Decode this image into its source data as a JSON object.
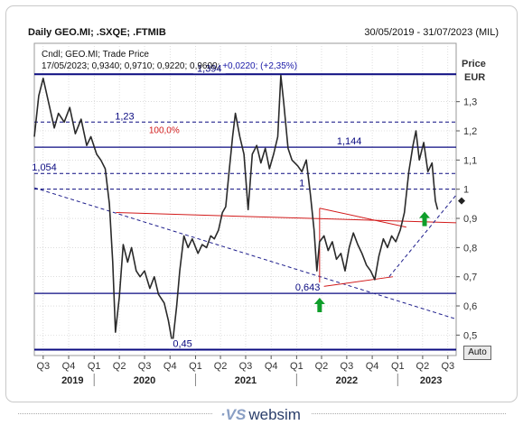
{
  "header": {
    "title": "Daily GEO.MI; .SXQE; .FTMIB",
    "date_range": "30/05/2019 - 31/07/2023 (MIL)"
  },
  "legend": {
    "line1": "Cndl; GEO.MI; Trade Price",
    "line2_values": "17/05/2023; 0,9340; 0,9710; 0,9220; 0,9600;",
    "line2_change": "+0,0220; (+2,35%)"
  },
  "axis": {
    "price_label": "Price",
    "currency_label": "EUR",
    "auto_button": "Auto"
  },
  "brand": {
    "logo_mark": "·VS",
    "logo_text": "websim"
  },
  "colors": {
    "price_line": "#2a2a2a",
    "level_line": "#0a0a80",
    "dashed_level": "#0a0a80",
    "trend_red": "#d21a1a",
    "trend_dashed": "#1e1e8c",
    "arrow_green": "#0f9e2a",
    "grid": "#c8c8c8"
  },
  "chart_data": {
    "type": "line",
    "title": "Daily GEO.MI; .SXQE; .FTMIB",
    "ylabel": "Price EUR",
    "ylim": [
      0.43,
      1.5
    ],
    "y_ticks": [
      0.5,
      0.6,
      0.7,
      0.8,
      0.9,
      1,
      1.1,
      1.2,
      1.3
    ],
    "y_tick_labels": [
      "0,5",
      "0,6",
      "0,7",
      "0,8",
      "0,9",
      "1",
      "1,1",
      "1,2",
      "1,3"
    ],
    "x_range": [
      "2019-05-30",
      "2023-07-31"
    ],
    "x_ticks": [
      {
        "date": "2019-07-01",
        "label": "Q3"
      },
      {
        "date": "2019-10-01",
        "label": "Q4"
      },
      {
        "date": "2020-01-01",
        "label": "Q1"
      },
      {
        "date": "2020-04-01",
        "label": "Q2"
      },
      {
        "date": "2020-07-01",
        "label": "Q3"
      },
      {
        "date": "2020-10-01",
        "label": "Q4"
      },
      {
        "date": "2021-01-01",
        "label": "Q1"
      },
      {
        "date": "2021-04-01",
        "label": "Q2"
      },
      {
        "date": "2021-07-01",
        "label": "Q3"
      },
      {
        "date": "2021-10-01",
        "label": "Q4"
      },
      {
        "date": "2022-01-01",
        "label": "Q1"
      },
      {
        "date": "2022-04-01",
        "label": "Q2"
      },
      {
        "date": "2022-07-01",
        "label": "Q3"
      },
      {
        "date": "2022-10-01",
        "label": "Q4"
      },
      {
        "date": "2023-01-01",
        "label": "Q1"
      },
      {
        "date": "2023-04-01",
        "label": "Q2"
      },
      {
        "date": "2023-07-01",
        "label": "Q3"
      }
    ],
    "year_labels": [
      {
        "date": "2019-10-15",
        "label": "2019"
      },
      {
        "date": "2020-07-01",
        "label": "2020"
      },
      {
        "date": "2021-07-01",
        "label": "2021"
      },
      {
        "date": "2022-07-01",
        "label": "2022"
      },
      {
        "date": "2023-05-01",
        "label": "2023"
      }
    ],
    "last_price": 0.96,
    "series": [
      {
        "name": "GEO.MI",
        "points": [
          [
            "2019-05-30",
            1.18
          ],
          [
            "2019-06-15",
            1.32
          ],
          [
            "2019-07-01",
            1.38
          ],
          [
            "2019-07-20",
            1.3
          ],
          [
            "2019-08-10",
            1.21
          ],
          [
            "2019-08-25",
            1.26
          ],
          [
            "2019-09-15",
            1.23
          ],
          [
            "2019-10-05",
            1.28
          ],
          [
            "2019-10-25",
            1.19
          ],
          [
            "2019-11-15",
            1.24
          ],
          [
            "2019-12-05",
            1.15
          ],
          [
            "2019-12-20",
            1.18
          ],
          [
            "2020-01-10",
            1.12
          ],
          [
            "2020-01-25",
            1.1
          ],
          [
            "2020-02-10",
            1.07
          ],
          [
            "2020-02-25",
            0.95
          ],
          [
            "2020-03-08",
            0.75
          ],
          [
            "2020-03-18",
            0.51
          ],
          [
            "2020-04-01",
            0.63
          ],
          [
            "2020-04-15",
            0.81
          ],
          [
            "2020-05-01",
            0.75
          ],
          [
            "2020-05-15",
            0.8
          ],
          [
            "2020-06-01",
            0.72
          ],
          [
            "2020-06-15",
            0.7
          ],
          [
            "2020-07-01",
            0.72
          ],
          [
            "2020-07-20",
            0.66
          ],
          [
            "2020-08-05",
            0.7
          ],
          [
            "2020-08-20",
            0.64
          ],
          [
            "2020-09-10",
            0.61
          ],
          [
            "2020-09-25",
            0.55
          ],
          [
            "2020-10-10",
            0.47
          ],
          [
            "2020-10-25",
            0.6
          ],
          [
            "2020-11-05",
            0.72
          ],
          [
            "2020-11-20",
            0.84
          ],
          [
            "2020-12-05",
            0.8
          ],
          [
            "2020-12-20",
            0.83
          ],
          [
            "2021-01-10",
            0.78
          ],
          [
            "2021-01-25",
            0.81
          ],
          [
            "2021-02-10",
            0.8
          ],
          [
            "2021-02-25",
            0.84
          ],
          [
            "2021-03-10",
            0.83
          ],
          [
            "2021-03-25",
            0.86
          ],
          [
            "2021-04-08",
            0.92
          ],
          [
            "2021-04-20",
            0.94
          ],
          [
            "2021-05-01",
            1.05
          ],
          [
            "2021-05-15",
            1.18
          ],
          [
            "2021-05-25",
            1.26
          ],
          [
            "2021-06-10",
            1.18
          ],
          [
            "2021-06-25",
            1.12
          ],
          [
            "2021-07-10",
            0.93
          ],
          [
            "2021-07-25",
            1.12
          ],
          [
            "2021-08-10",
            1.15
          ],
          [
            "2021-08-25",
            1.09
          ],
          [
            "2021-09-10",
            1.14
          ],
          [
            "2021-09-25",
            1.07
          ],
          [
            "2021-10-10",
            1.12
          ],
          [
            "2021-10-25",
            1.18
          ],
          [
            "2021-11-05",
            1.39
          ],
          [
            "2021-11-15",
            1.3
          ],
          [
            "2021-12-01",
            1.14
          ],
          [
            "2021-12-15",
            1.1
          ],
          [
            "2022-01-05",
            1.08
          ],
          [
            "2022-01-20",
            1.06
          ],
          [
            "2022-02-05",
            1.1
          ],
          [
            "2022-02-20",
            0.98
          ],
          [
            "2022-03-05",
            0.86
          ],
          [
            "2022-03-15",
            0.72
          ],
          [
            "2022-03-25",
            0.82
          ],
          [
            "2022-04-10",
            0.84
          ],
          [
            "2022-04-25",
            0.79
          ],
          [
            "2022-05-10",
            0.82
          ],
          [
            "2022-05-25",
            0.76
          ],
          [
            "2022-06-10",
            0.78
          ],
          [
            "2022-06-25",
            0.72
          ],
          [
            "2022-07-10",
            0.8
          ],
          [
            "2022-07-25",
            0.85
          ],
          [
            "2022-08-10",
            0.81
          ],
          [
            "2022-08-25",
            0.78
          ],
          [
            "2022-09-10",
            0.74
          ],
          [
            "2022-09-25",
            0.72
          ],
          [
            "2022-10-10",
            0.69
          ],
          [
            "2022-10-25",
            0.77
          ],
          [
            "2022-11-10",
            0.83
          ],
          [
            "2022-11-25",
            0.8
          ],
          [
            "2022-12-10",
            0.84
          ],
          [
            "2022-12-25",
            0.82
          ],
          [
            "2023-01-10",
            0.86
          ],
          [
            "2023-01-25",
            0.92
          ],
          [
            "2023-02-10",
            1.06
          ],
          [
            "2023-02-25",
            1.15
          ],
          [
            "2023-03-08",
            1.2
          ],
          [
            "2023-03-20",
            1.1
          ],
          [
            "2023-04-05",
            1.16
          ],
          [
            "2023-04-20",
            1.06
          ],
          [
            "2023-05-05",
            1.09
          ],
          [
            "2023-05-17",
            0.96
          ],
          [
            "2023-05-25",
            0.93
          ]
        ]
      }
    ],
    "horizontal_levels": [
      {
        "value": 1.394,
        "label": "1,394",
        "style": "solid"
      },
      {
        "value": 1.23,
        "label": "1,23",
        "style": "dashed",
        "note": "100,0%"
      },
      {
        "value": 1.144,
        "label": "1,144",
        "style": "solid"
      },
      {
        "value": 1.054,
        "label": "1,054",
        "style": "dashed"
      },
      {
        "value": 1.0,
        "label": "1",
        "style": "dashed"
      },
      {
        "value": 0.643,
        "label": "0,643",
        "style": "solid"
      },
      {
        "value": 0.45,
        "label": "0,45",
        "style": "solid"
      }
    ],
    "trendlines": [
      {
        "kind": "dashed-blue",
        "from": [
          "2019-05-30",
          1.005
        ],
        "to": [
          "2023-07-31",
          0.555
        ]
      },
      {
        "kind": "red",
        "from": [
          "2020-03-20",
          0.92
        ],
        "to": [
          "2023-07-31",
          0.885
        ]
      },
      {
        "kind": "red",
        "from": [
          "2022-03-25",
          0.665
        ],
        "to": [
          "2022-12-15",
          0.7
        ]
      },
      {
        "kind": "red",
        "from": [
          "2022-03-25",
          0.935
        ],
        "to": [
          "2023-02-01",
          0.87
        ]
      },
      {
        "kind": "red",
        "from": [
          "2022-03-25",
          0.935
        ],
        "to": [
          "2022-03-25",
          0.665
        ]
      },
      {
        "kind": "dashed-blue",
        "from": [
          "2022-12-01",
          0.7
        ],
        "to": [
          "2023-07-31",
          0.98
        ]
      }
    ],
    "arrows": [
      {
        "date": "2022-03-25",
        "value": 0.6,
        "direction": "up"
      },
      {
        "date": "2023-04-08",
        "value": 0.895,
        "direction": "up"
      }
    ]
  }
}
